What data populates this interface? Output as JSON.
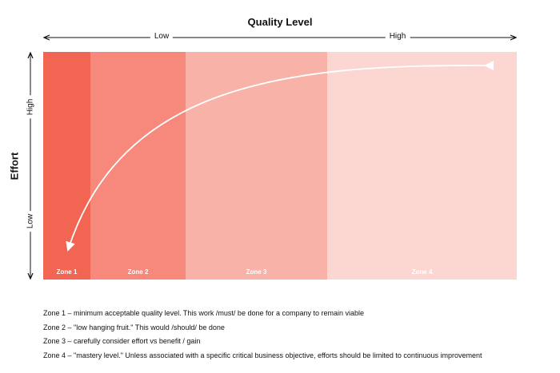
{
  "title": "Quality Level",
  "y_title": "Effort",
  "x_axis": {
    "low_label": "Low",
    "high_label": "High"
  },
  "y_axis": {
    "high_label": "High",
    "low_label": "Low"
  },
  "zones": [
    {
      "label": "Zone 1",
      "color": "#f26553"
    },
    {
      "label": "Zone 2",
      "color": "#f6897c"
    },
    {
      "label": "Zone 3",
      "color": "#f8b2a8"
    },
    {
      "label": "Zone 4",
      "color": "#fcd7d2"
    }
  ],
  "legend": [
    "Zone 1 – minimum acceptable quality level. This work /must/ be done for a company to remain viable",
    "Zone 2 – \"low hanging fruit.\" This would /should/ be done",
    "Zone 3 – carefully consider effort vs benefit / gain",
    "Zone 4 – \"mastery level.\" Unless associated with a specific critical business objective, efforts should be limited to continuous improvement"
  ]
}
